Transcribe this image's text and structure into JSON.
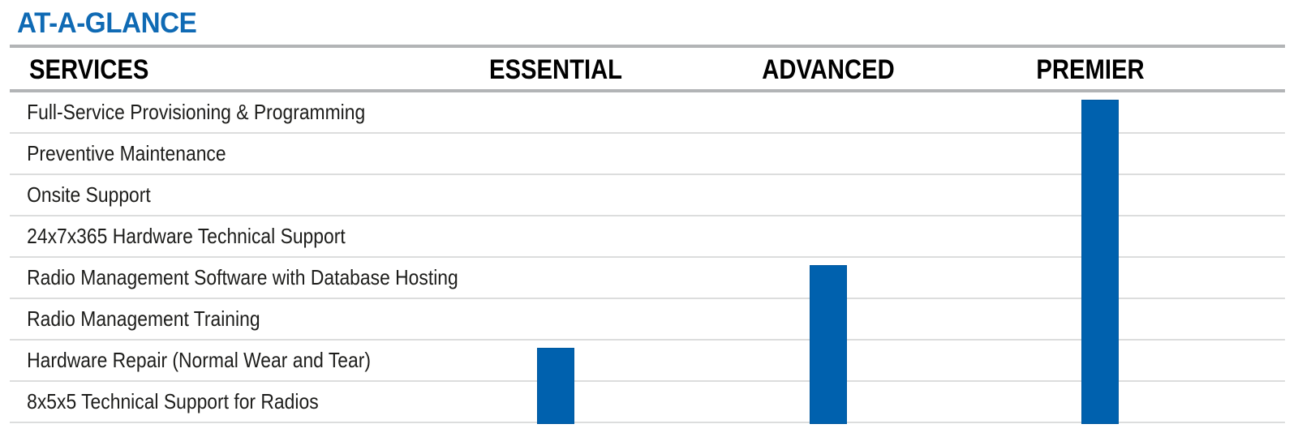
{
  "page": {
    "title": "AT-A-GLANCE"
  },
  "colors": {
    "title_blue": "#0f6ab4",
    "bar_blue": "#0061ae",
    "thick_rule_gray": "#b2b4b6",
    "row_line_gray": "#dcdddd",
    "header_text": "#000000",
    "body_text": "#1d1d1b"
  },
  "chart_data": {
    "type": "table",
    "title": "AT-A-GLANCE",
    "row_header": "SERVICES",
    "columns": [
      "ESSENTIAL",
      "ADVANCED",
      "PREMIER"
    ],
    "rows": [
      "Full-Service Provisioning & Programming",
      "Preventive Maintenance",
      "Onsite Support",
      "24x7x365 Hardware Technical Support",
      "Radio Management Software with Database Hosting",
      "Radio Management Training",
      "Hardware Repair (Normal Wear and Tear)",
      "8x5x5 Technical Support for Radios"
    ],
    "included": [
      {
        "tier": "ESSENTIAL",
        "from_row": 6,
        "services": [
          "Hardware Repair (Normal Wear and Tear)",
          "8x5x5 Technical Support for Radios"
        ]
      },
      {
        "tier": "ADVANCED",
        "from_row": 4,
        "services": [
          "Radio Management Software with Database Hosting",
          "Radio Management Training",
          "Hardware Repair (Normal Wear and Tear)",
          "8x5x5 Technical Support for Radios"
        ]
      },
      {
        "tier": "PREMIER",
        "from_row": 0,
        "services": [
          "Full-Service Provisioning & Programming",
          "Preventive Maintenance",
          "Onsite Support",
          "24x7x365 Hardware Technical Support",
          "Radio Management Software with Database Hosting",
          "Radio Management Training",
          "Hardware Repair (Normal Wear and Tear)",
          "8x5x5 Technical Support for Radios"
        ]
      }
    ],
    "legend": "none",
    "grid": "horizontal row separators only",
    "notes": "Solid blue vertical bars indicate which services are included in each tier; each bar spans from its first included service row down to the bottom of the table."
  }
}
